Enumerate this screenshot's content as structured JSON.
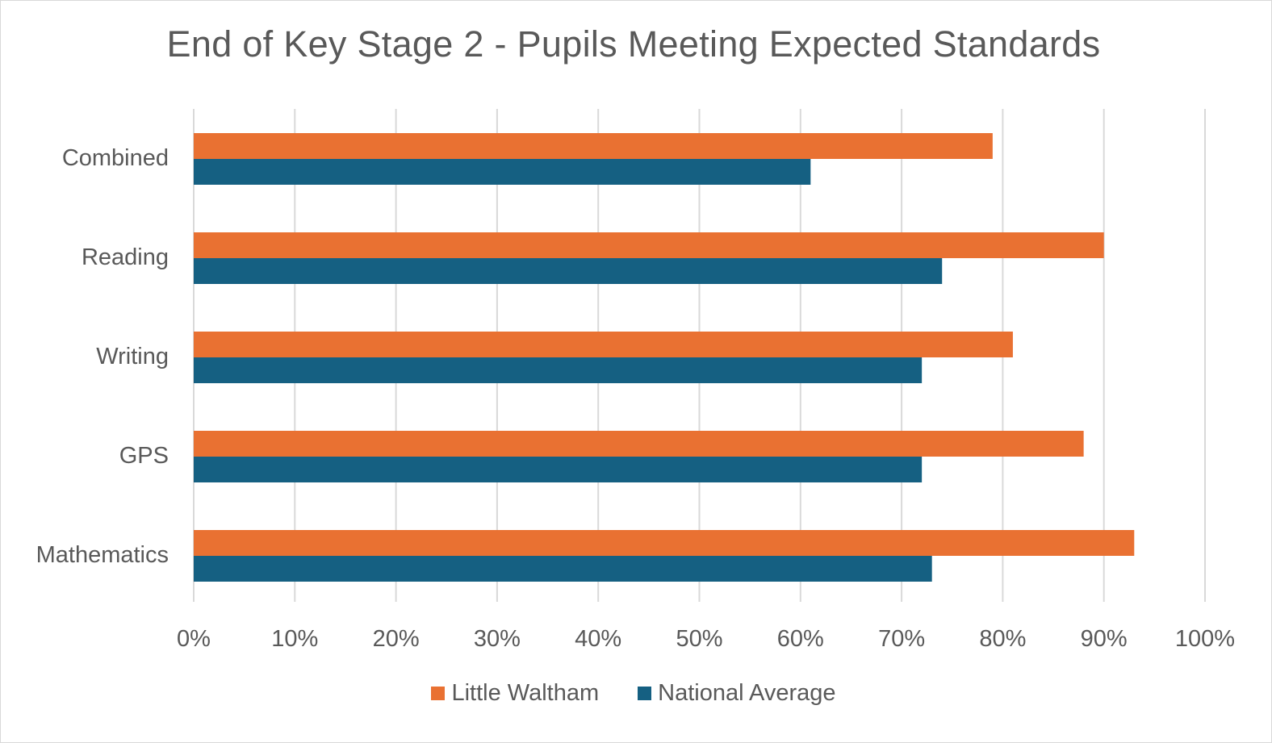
{
  "chart_data": {
    "type": "bar",
    "orientation": "horizontal",
    "title": "End of Key Stage 2 - Pupils Meeting Expected Standards",
    "xlabel": "",
    "ylabel": "",
    "categories": [
      "Combined",
      "Reading",
      "Writing",
      "GPS",
      "Mathematics"
    ],
    "series": [
      {
        "name": "Little Waltham",
        "color": "#E97132",
        "values": [
          79,
          90,
          81,
          88,
          93
        ]
      },
      {
        "name": "National Average",
        "color": "#156082",
        "values": [
          61,
          74,
          72,
          72,
          73
        ]
      }
    ],
    "xlim": [
      0,
      100
    ],
    "x_ticks": [
      0,
      10,
      20,
      30,
      40,
      50,
      60,
      70,
      80,
      90,
      100
    ],
    "x_tick_labels": [
      "0%",
      "10%",
      "20%",
      "30%",
      "40%",
      "50%",
      "60%",
      "70%",
      "80%",
      "90%",
      "100%"
    ],
    "grid": true,
    "legend_position": "bottom"
  }
}
